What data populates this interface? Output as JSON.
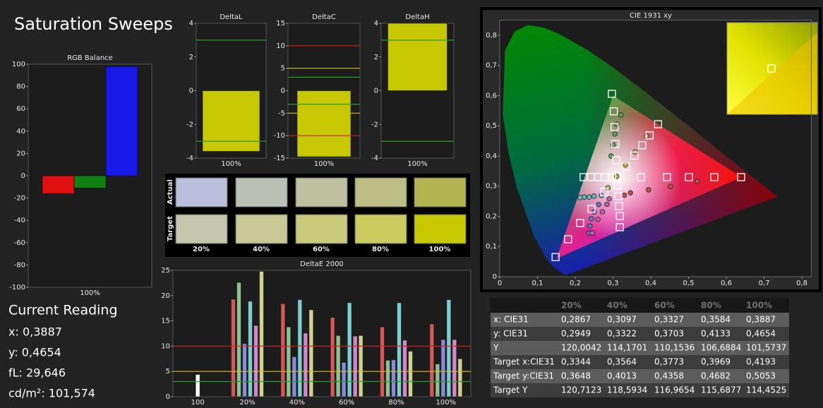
{
  "header": {
    "title": "Saturation Sweeps"
  },
  "current_reading": {
    "title": "Current Reading",
    "lines": [
      "x: 0,3887",
      "y: 0,4654",
      "fL: 29,646",
      "cd/m²: 101,574"
    ]
  },
  "swatches": {
    "row_labels": [
      "Actual",
      "Target"
    ],
    "columns": [
      "20%",
      "40%",
      "60%",
      "80%",
      "100%"
    ],
    "actual_colors": [
      "#b9bfdc",
      "#bcc1b8",
      "#bec0a0",
      "#bdbd86",
      "#b4b450"
    ],
    "target_colors": [
      "#c4c6ae",
      "#c8c996",
      "#caca7c",
      "#cbcb60",
      "#c8c800"
    ]
  },
  "table": {
    "columns": [
      "20%",
      "40%",
      "60%",
      "80%",
      "100%"
    ],
    "rows": [
      {
        "label": "x: CIE31",
        "values": [
          "0,2867",
          "0,3097",
          "0,3327",
          "0,3584",
          "0,3887"
        ]
      },
      {
        "label": "y: CIE31",
        "values": [
          "0,2949",
          "0,3322",
          "0,3703",
          "0,4133",
          "0,4654"
        ]
      },
      {
        "label": "Y",
        "values": [
          "120,0042",
          "114,1701",
          "110,1536",
          "106,6884",
          "101,5737"
        ]
      },
      {
        "label": "Target x:CIE31",
        "values": [
          "0,3344",
          "0,3564",
          "0,3773",
          "0,3969",
          "0,4193"
        ]
      },
      {
        "label": "Target y:CIE31",
        "values": [
          "0,3648",
          "0,4013",
          "0,4358",
          "0,4682",
          "0,5053"
        ]
      },
      {
        "label": "Target Y",
        "values": [
          "120,7123",
          "118,5934",
          "116,9654",
          "115,6877",
          "114,4525"
        ]
      }
    ]
  },
  "chart_data": [
    {
      "type": "bar",
      "title": "RGB Balance",
      "categories": [
        "100%"
      ],
      "series": [
        {
          "color": "#e01010",
          "values": [
            -16
          ]
        },
        {
          "color": "#108010",
          "values": [
            -11
          ]
        },
        {
          "color": "#1818e8",
          "values": [
            98
          ]
        }
      ],
      "ylim": [
        -100,
        100
      ],
      "yticks": [
        -100,
        -80,
        -60,
        -40,
        -20,
        0,
        20,
        40,
        60,
        80,
        100
      ],
      "grid": false
    },
    {
      "type": "bar",
      "title": "DeltaL",
      "categories": [
        "100%"
      ],
      "series": [
        {
          "color": "#c8c800",
          "values": [
            -3.6
          ]
        }
      ],
      "ylim": [
        -4,
        4
      ],
      "yticks": [
        -4,
        -2,
        0,
        2,
        4
      ],
      "reference_lines": [
        {
          "value": 3,
          "color": "#2a9a2a"
        },
        {
          "value": -3,
          "color": "#2a9a2a"
        }
      ],
      "grid": false
    },
    {
      "type": "bar",
      "title": "DeltaC",
      "categories": [
        "100%"
      ],
      "series": [
        {
          "color": "#c8c800",
          "values": [
            -14.7
          ]
        }
      ],
      "ylim": [
        -15,
        15
      ],
      "yticks": [
        -15,
        -10,
        -5,
        0,
        5,
        10,
        15
      ],
      "reference_lines": [
        {
          "value": 10,
          "color": "#d02020"
        },
        {
          "value": -10,
          "color": "#d02020"
        },
        {
          "value": 5,
          "color": "#d0c020"
        },
        {
          "value": -5,
          "color": "#d0c020"
        },
        {
          "value": 3,
          "color": "#2a9a2a"
        },
        {
          "value": -3,
          "color": "#2a9a2a"
        }
      ],
      "grid": false
    },
    {
      "type": "bar",
      "title": "DeltaH",
      "categories": [
        "100%"
      ],
      "series": [
        {
          "color": "#c8c800",
          "values": [
            4
          ]
        }
      ],
      "ylim": [
        -4,
        4
      ],
      "yticks": [
        -4,
        -2,
        0,
        2,
        4
      ],
      "reference_lines": [
        {
          "value": 3,
          "color": "#2a9a2a"
        },
        {
          "value": -3,
          "color": "#2a9a2a"
        }
      ],
      "grid": false
    },
    {
      "type": "bar",
      "title": "DeltaE 2000",
      "categories": [
        "100",
        "20%",
        "40%",
        "60%",
        "80%",
        "100%"
      ],
      "series": [
        {
          "color": "#ffffff",
          "values": [
            4.4,
            null,
            null,
            null,
            null,
            null
          ]
        },
        {
          "color": "#d05a5a",
          "values": [
            null,
            19.3,
            18.4,
            15.7,
            13.8,
            14.4
          ]
        },
        {
          "color": "#8fc08f",
          "values": [
            null,
            22.6,
            13.8,
            12.1,
            7.2,
            6.5
          ]
        },
        {
          "color": "#8a8ad8",
          "values": [
            null,
            10.5,
            7.9,
            6.8,
            7.3,
            11.3
          ]
        },
        {
          "color": "#7fcccc",
          "values": [
            null,
            18.9,
            19.2,
            18.6,
            18.6,
            19.2
          ]
        },
        {
          "color": "#d088c8",
          "values": [
            null,
            14.1,
            12.6,
            12.0,
            11.2,
            11.3
          ]
        },
        {
          "color": "#d0d090",
          "values": [
            null,
            24.8,
            17.2,
            12.1,
            9.0,
            7.5
          ]
        }
      ],
      "ylim": [
        0,
        25
      ],
      "yticks": [
        0,
        5,
        10,
        15,
        20,
        25
      ],
      "reference_lines": [
        {
          "value": 10,
          "color": "#d02020"
        },
        {
          "value": 5,
          "color": "#d0c020"
        },
        {
          "value": 3,
          "color": "#2a9a2a"
        }
      ],
      "grid": false
    },
    {
      "type": "scatter",
      "title": "CIE 1931 xy",
      "xlim": [
        0,
        0.825
      ],
      "ylim": [
        0,
        0.85
      ],
      "xticks": [
        0,
        {
          "value": 0.1,
          "label": "0,1"
        },
        {
          "value": 0.2,
          "label": "0,2"
        },
        {
          "value": 0.3,
          "label": "0,3"
        },
        {
          "value": 0.4,
          "label": "0,4"
        },
        {
          "value": 0.5,
          "label": "0,5"
        },
        {
          "value": 0.6,
          "label": "0,6"
        },
        {
          "value": 0.7,
          "label": "0,7"
        },
        {
          "value": 0.8,
          "label": "0,8"
        }
      ],
      "yticks": [
        0,
        {
          "value": 0.1,
          "label": "0,1"
        },
        {
          "value": 0.2,
          "label": "0,2"
        },
        {
          "value": 0.3,
          "label": "0,3"
        },
        {
          "value": 0.4,
          "label": "0,4"
        },
        {
          "value": 0.5,
          "label": "0,5"
        },
        {
          "value": 0.6,
          "label": "0,6"
        },
        {
          "value": 0.7,
          "label": "0,7"
        },
        {
          "value": 0.8,
          "label": "0,8"
        }
      ],
      "series": [
        {
          "marker": "circle",
          "color": "#c05050",
          "x": [
            0.33,
            0.346,
            0.394,
            0.452,
            0.523
          ],
          "y": [
            0.27,
            0.278,
            0.288,
            0.299,
            0.316
          ]
        },
        {
          "marker": "circle",
          "color": "#5aa55a",
          "x": [
            0.295,
            0.3,
            0.305,
            0.31,
            0.321
          ],
          "y": [
            0.4,
            0.437,
            0.473,
            0.505,
            0.536
          ]
        },
        {
          "marker": "circle",
          "color": "#7070c0",
          "x": [
            0.262,
            0.25,
            0.243,
            0.239,
            0.236
          ],
          "y": [
            0.239,
            0.215,
            0.192,
            0.168,
            0.145
          ]
        },
        {
          "marker": "circle",
          "color": "#6fb8b8",
          "x": [
            0.269,
            0.25,
            0.237,
            0.224,
            0.213
          ],
          "y": [
            0.269,
            0.267,
            0.264,
            0.264,
            0.262
          ]
        },
        {
          "marker": "circle",
          "color": "#c060b0",
          "x": [
            0.29,
            0.284,
            0.272,
            0.26,
            0.245
          ],
          "y": [
            0.258,
            0.24,
            0.215,
            0.19,
            0.145
          ]
        },
        {
          "marker": "circle",
          "color": "#b8b850",
          "x": [
            0.2867,
            0.3097,
            0.3327,
            0.3584,
            0.3887
          ],
          "y": [
            0.2949,
            0.3322,
            0.3703,
            0.4133,
            0.4654
          ]
        },
        {
          "marker": "square",
          "color": "#ffffff",
          "x": [
            0.374,
            0.443,
            0.501,
            0.568,
            0.639
          ],
          "y": [
            0.33,
            0.33,
            0.33,
            0.33,
            0.33
          ]
        },
        {
          "marker": "square",
          "color": "#ffffff",
          "x": [
            0.308,
            0.306,
            0.304,
            0.302,
            0.297
          ],
          "y": [
            0.386,
            0.44,
            0.496,
            0.548,
            0.606
          ]
        },
        {
          "marker": "square",
          "color": "#ffffff",
          "x": [
            0.277,
            0.243,
            0.213,
            0.181,
            0.148
          ],
          "y": [
            0.281,
            0.225,
            0.178,
            0.124,
            0.065
          ]
        },
        {
          "marker": "square",
          "color": "#ffffff",
          "x": [
            0.297,
            0.278,
            0.26,
            0.242,
            0.222
          ],
          "y": [
            0.33,
            0.33,
            0.33,
            0.33,
            0.33
          ]
        },
        {
          "marker": "square",
          "color": "#ffffff",
          "x": [
            0.312,
            0.314,
            0.316,
            0.318,
            0.318
          ],
          "y": [
            0.302,
            0.267,
            0.234,
            0.201,
            0.164
          ]
        },
        {
          "marker": "square",
          "color": "#ffffff",
          "x": [
            0.3344,
            0.3564,
            0.3773,
            0.3969,
            0.4193
          ],
          "y": [
            0.3648,
            0.4013,
            0.4358,
            0.4682,
            0.5053
          ]
        }
      ]
    }
  ]
}
